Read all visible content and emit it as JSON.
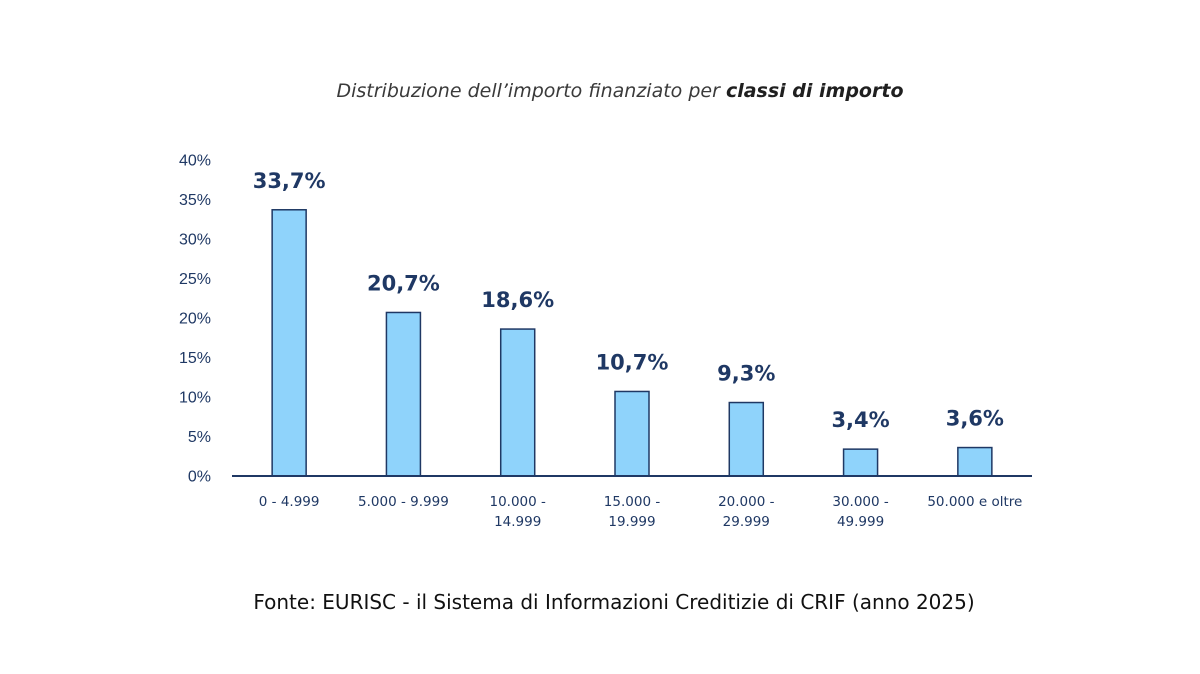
{
  "chart_data": {
    "type": "bar",
    "title_regular": "Distribuzione dell’importo finanziato per ",
    "title_bold": "classi di importo",
    "categories": [
      [
        "0 - 4.999"
      ],
      [
        "5.000 - 9.999"
      ],
      [
        "10.000 -",
        "14.999"
      ],
      [
        "15.000 -",
        "19.999"
      ],
      [
        "20.000 -",
        "29.999"
      ],
      [
        "30.000 -",
        "49.999"
      ],
      [
        "50.000 e oltre"
      ]
    ],
    "values": [
      33.7,
      20.7,
      18.6,
      10.7,
      9.3,
      3.4,
      3.6
    ],
    "data_labels": [
      "33,7%",
      "20,7%",
      "18,6%",
      "10,7%",
      "9,3%",
      "3,4%",
      "3,6%"
    ],
    "y_ticks": [
      0,
      5,
      10,
      15,
      20,
      25,
      30,
      35,
      40
    ],
    "y_tick_labels": [
      "0%",
      "5%",
      "10%",
      "15%",
      "20%",
      "25%",
      "30%",
      "35%",
      "40%"
    ],
    "ylim": [
      0,
      40
    ],
    "grid": false,
    "legend": "none",
    "colors": {
      "bar_fill": "#8fd3fb",
      "bar_edge": "#1f3864",
      "label": "#1f3864"
    }
  },
  "footer": {
    "source": "Fonte: EURISC - il Sistema di Informazioni Creditizie di CRIF (anno 2025)"
  }
}
